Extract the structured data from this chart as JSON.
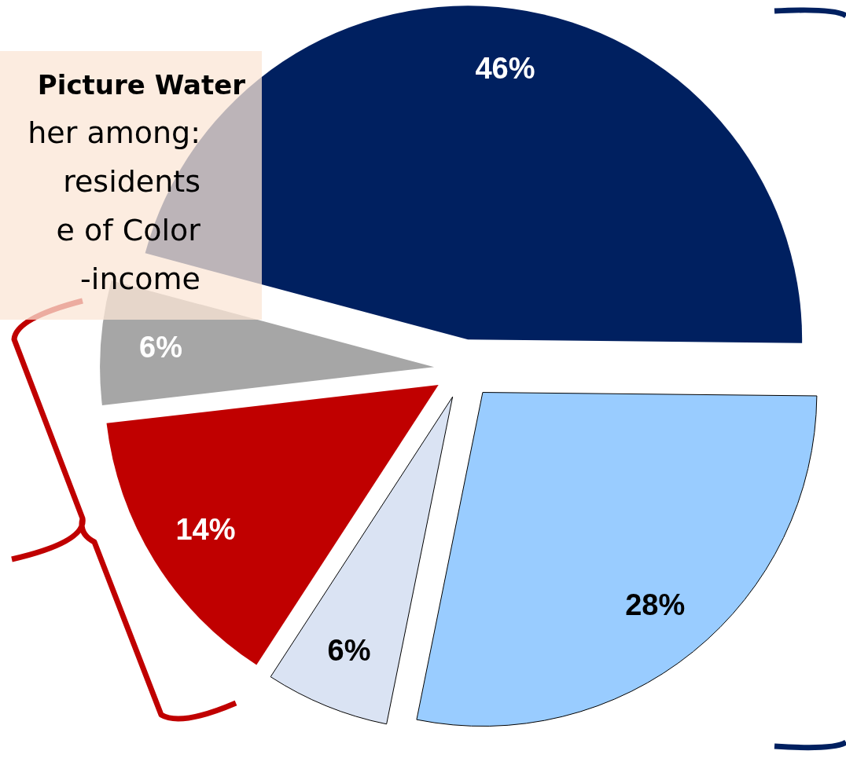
{
  "chart_data": {
    "type": "pie",
    "categories": [
      null,
      null,
      null,
      null,
      null
    ],
    "values": [
      46,
      28,
      6,
      14,
      6
    ],
    "colors": [
      "#002060",
      "#99ccff",
      "#dae3f3",
      "#c00000",
      "#a6a6a6"
    ],
    "value_labels": [
      "46%",
      "28%",
      "6%",
      "14%",
      "6%"
    ],
    "annotations": [
      "Picture Water",
      "her among:",
      "residents",
      "e of Color",
      "-income"
    ]
  }
}
